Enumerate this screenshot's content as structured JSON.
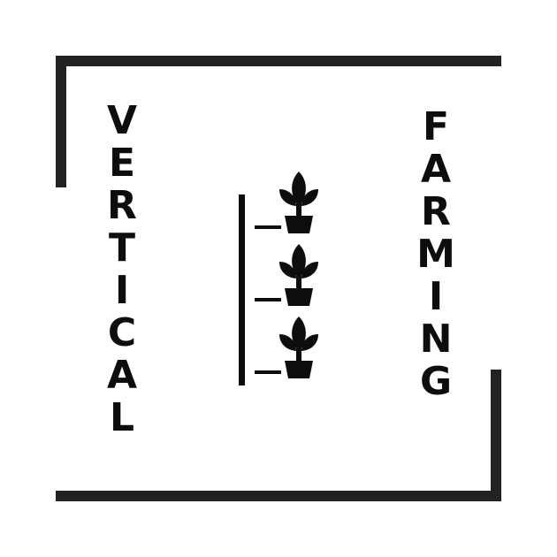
{
  "logo": {
    "left_word": "VERTICAL",
    "right_word": "FARMING",
    "colors": {
      "ink": "#0d0d0d",
      "frame": "#222222",
      "background": "#ffffff"
    },
    "icon": "vertical-plant-rack-icon",
    "plant_count": 3
  }
}
